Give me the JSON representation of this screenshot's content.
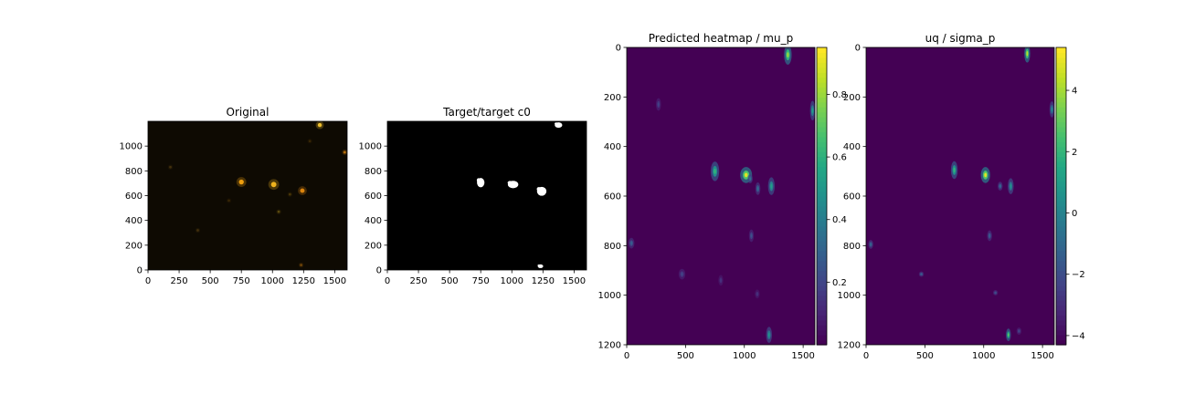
{
  "chart_data": [
    {
      "type": "image",
      "title": "Original",
      "colormap": "rgb",
      "xlim": [
        0,
        1600
      ],
      "ylim": [
        1200,
        0
      ],
      "xticks": [
        0,
        250,
        500,
        750,
        1000,
        1250,
        1500
      ],
      "yticks": [
        0,
        200,
        400,
        600,
        800,
        1000
      ],
      "blobs": [
        {
          "x": 750,
          "y": 710,
          "r": 22,
          "intensity": 1.0,
          "color": "#ffaa10"
        },
        {
          "x": 1010,
          "y": 690,
          "r": 24,
          "intensity": 1.0,
          "color": "#ffc020"
        },
        {
          "x": 1240,
          "y": 640,
          "r": 20,
          "intensity": 0.9,
          "color": "#ff9a10"
        },
        {
          "x": 1380,
          "y": 1170,
          "r": 18,
          "intensity": 1.0,
          "color": "#ffcc30"
        },
        {
          "x": 1580,
          "y": 950,
          "r": 12,
          "intensity": 0.7,
          "color": "#ff9a10"
        },
        {
          "x": 1230,
          "y": 40,
          "r": 8,
          "intensity": 0.5,
          "color": "#d08010"
        },
        {
          "x": 1050,
          "y": 470,
          "r": 8,
          "intensity": 0.4,
          "color": "#c0a020"
        },
        {
          "x": 400,
          "y": 320,
          "r": 10,
          "intensity": 0.35,
          "color": "#a07020"
        },
        {
          "x": 180,
          "y": 830,
          "r": 8,
          "intensity": 0.35,
          "color": "#a07020"
        },
        {
          "x": 1300,
          "y": 1040,
          "r": 10,
          "intensity": 0.3,
          "color": "#906010"
        },
        {
          "x": 650,
          "y": 560,
          "r": 10,
          "intensity": 0.3,
          "color": "#906010"
        },
        {
          "x": 1140,
          "y": 610,
          "r": 8,
          "intensity": 0.35,
          "color": "#b08010"
        }
      ]
    },
    {
      "type": "image",
      "title": "Target/target c0",
      "colormap": "gray",
      "xlim": [
        0,
        1600
      ],
      "ylim": [
        1200,
        0
      ],
      "xticks": [
        0,
        250,
        500,
        750,
        1000,
        1250,
        1500
      ],
      "yticks": [
        0,
        200,
        400,
        600,
        800,
        1000
      ],
      "blobs": [
        {
          "x": 750,
          "y": 705,
          "rx": 30,
          "ry": 38
        },
        {
          "x": 1010,
          "y": 690,
          "rx": 42,
          "ry": 30
        },
        {
          "x": 1240,
          "y": 635,
          "rx": 38,
          "ry": 36
        },
        {
          "x": 1375,
          "y": 1170,
          "rx": 30,
          "ry": 22
        },
        {
          "x": 1230,
          "y": 30,
          "rx": 22,
          "ry": 12
        }
      ]
    },
    {
      "type": "heatmap",
      "title": "Predicted heatmap / mu_p",
      "colormap": "viridis",
      "xlim": [
        0,
        1600
      ],
      "ylim": [
        0,
        1200
      ],
      "xticks": [
        0,
        500,
        1000,
        1500
      ],
      "yticks": [
        0,
        200,
        400,
        600,
        800,
        1000,
        1200
      ],
      "colorbar": {
        "min": 0.0,
        "max": 0.95,
        "ticks": [
          0.2,
          0.4,
          0.6,
          0.8
        ]
      },
      "blobs": [
        {
          "x": 1015,
          "y": 515,
          "rx": 28,
          "ry": 18,
          "v": 0.95
        },
        {
          "x": 750,
          "y": 500,
          "rx": 20,
          "ry": 22,
          "v": 0.65
        },
        {
          "x": 1230,
          "y": 560,
          "rx": 16,
          "ry": 20,
          "v": 0.55
        },
        {
          "x": 1370,
          "y": 30,
          "rx": 18,
          "ry": 22,
          "v": 0.85
        },
        {
          "x": 1580,
          "y": 255,
          "rx": 12,
          "ry": 22,
          "v": 0.55
        },
        {
          "x": 1210,
          "y": 1160,
          "rx": 14,
          "ry": 18,
          "v": 0.5
        },
        {
          "x": 1115,
          "y": 570,
          "rx": 12,
          "ry": 14,
          "v": 0.35
        },
        {
          "x": 1050,
          "y": 530,
          "rx": 10,
          "ry": 10,
          "v": 0.4
        },
        {
          "x": 40,
          "y": 790,
          "rx": 14,
          "ry": 12,
          "v": 0.3
        },
        {
          "x": 470,
          "y": 915,
          "rx": 16,
          "ry": 12,
          "v": 0.2
        },
        {
          "x": 1060,
          "y": 760,
          "rx": 10,
          "ry": 14,
          "v": 0.25
        },
        {
          "x": 270,
          "y": 230,
          "rx": 12,
          "ry": 14,
          "v": 0.2
        },
        {
          "x": 1110,
          "y": 995,
          "rx": 10,
          "ry": 10,
          "v": 0.15
        },
        {
          "x": 800,
          "y": 940,
          "rx": 10,
          "ry": 12,
          "v": 0.15
        }
      ]
    },
    {
      "type": "heatmap",
      "title": "uq / sigma_p",
      "colormap": "viridis",
      "xlim": [
        0,
        1600
      ],
      "ylim": [
        0,
        1200
      ],
      "xticks": [
        0,
        500,
        1000,
        1500
      ],
      "yticks": [
        0,
        200,
        400,
        600,
        800,
        1000,
        1200
      ],
      "colorbar": {
        "min": -4.3,
        "max": 5.4,
        "ticks": [
          -4,
          -2,
          0,
          2,
          4
        ]
      },
      "blobs": [
        {
          "x": 1015,
          "y": 515,
          "rx": 22,
          "ry": 18,
          "v": 0.95
        },
        {
          "x": 750,
          "y": 495,
          "rx": 16,
          "ry": 20,
          "v": 0.65
        },
        {
          "x": 1230,
          "y": 560,
          "rx": 14,
          "ry": 18,
          "v": 0.5
        },
        {
          "x": 1370,
          "y": 25,
          "rx": 14,
          "ry": 20,
          "v": 0.9
        },
        {
          "x": 1580,
          "y": 250,
          "rx": 10,
          "ry": 18,
          "v": 0.45
        },
        {
          "x": 1210,
          "y": 1160,
          "rx": 10,
          "ry": 14,
          "v": 0.75
        },
        {
          "x": 1050,
          "y": 760,
          "rx": 8,
          "ry": 12,
          "v": 0.3
        },
        {
          "x": 1140,
          "y": 560,
          "rx": 8,
          "ry": 10,
          "v": 0.35
        },
        {
          "x": 40,
          "y": 795,
          "rx": 10,
          "ry": 10,
          "v": 0.35
        },
        {
          "x": 470,
          "y": 915,
          "rx": 6,
          "ry": 6,
          "v": 0.3
        },
        {
          "x": 1100,
          "y": 990,
          "rx": 6,
          "ry": 6,
          "v": 0.25
        },
        {
          "x": 1300,
          "y": 1145,
          "rx": 8,
          "ry": 8,
          "v": 0.2
        }
      ]
    }
  ]
}
